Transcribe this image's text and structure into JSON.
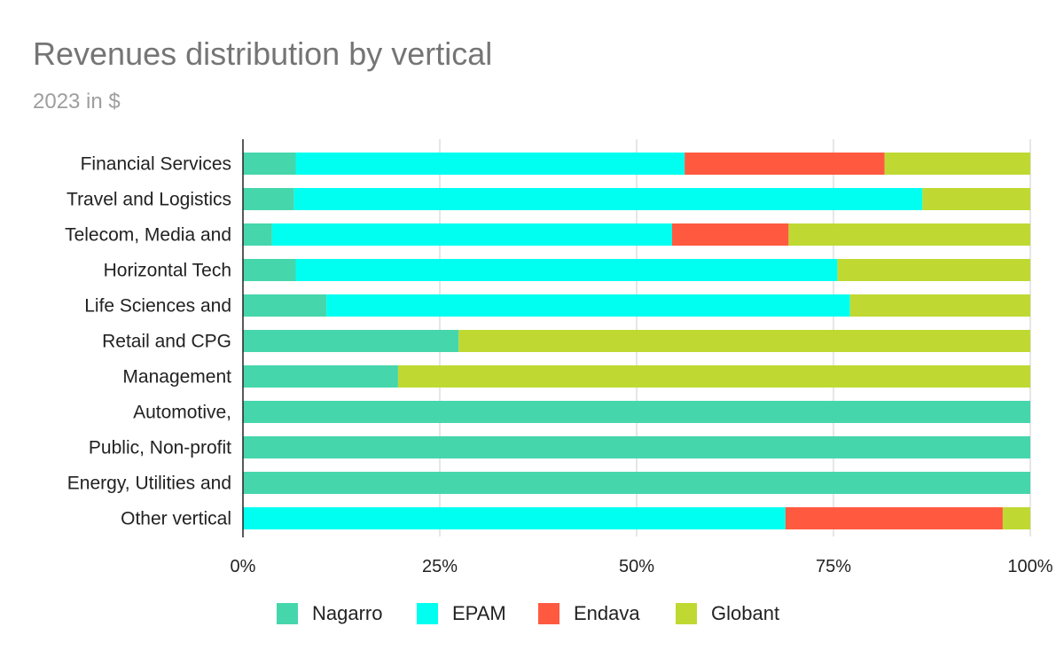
{
  "title": "Revenues distribution by vertical",
  "subtitle": "2023 in $",
  "colors": {
    "Nagarro": "#46d6ac",
    "EPAM": "#00fff0",
    "Endava": "#ff5a40",
    "Globant": "#bfd932",
    "axis": "#222222",
    "grid": "#cccccc",
    "text": "#222222"
  },
  "chart_data": {
    "type": "bar",
    "orientation": "horizontal",
    "stacked": "percent",
    "title": "Revenues distribution by vertical",
    "subtitle": "2023 in $",
    "categories": [
      "Financial Services",
      "Travel and Logistics",
      "Telecom, Media and",
      "Horizontal Tech",
      "Life Sciences and",
      "Retail and CPG",
      "Management",
      "Automotive,",
      "Public, Non-profit",
      "Energy, Utilities and",
      "Other vertical"
    ],
    "series": [
      {
        "name": "Nagarro",
        "values": [
          6.7,
          6.5,
          3.7,
          6.7,
          10.6,
          27.4,
          19.7,
          100,
          100,
          100,
          0
        ]
      },
      {
        "name": "EPAM",
        "values": [
          49.4,
          79.8,
          50.8,
          68.8,
          66.5,
          0,
          0,
          0,
          0,
          0,
          68.9
        ]
      },
      {
        "name": "Endava",
        "values": [
          25.4,
          0,
          14.8,
          0,
          0,
          0,
          0,
          0,
          0,
          0,
          27.6
        ]
      },
      {
        "name": "Globant",
        "values": [
          18.5,
          13.7,
          30.7,
          24.5,
          22.9,
          72.6,
          80.3,
          0,
          0,
          0,
          3.5
        ]
      }
    ],
    "xlim": [
      0,
      100
    ],
    "xticks": [
      "0%",
      "25%",
      "50%",
      "75%",
      "100%"
    ],
    "grid": true,
    "legend": "bottom"
  }
}
